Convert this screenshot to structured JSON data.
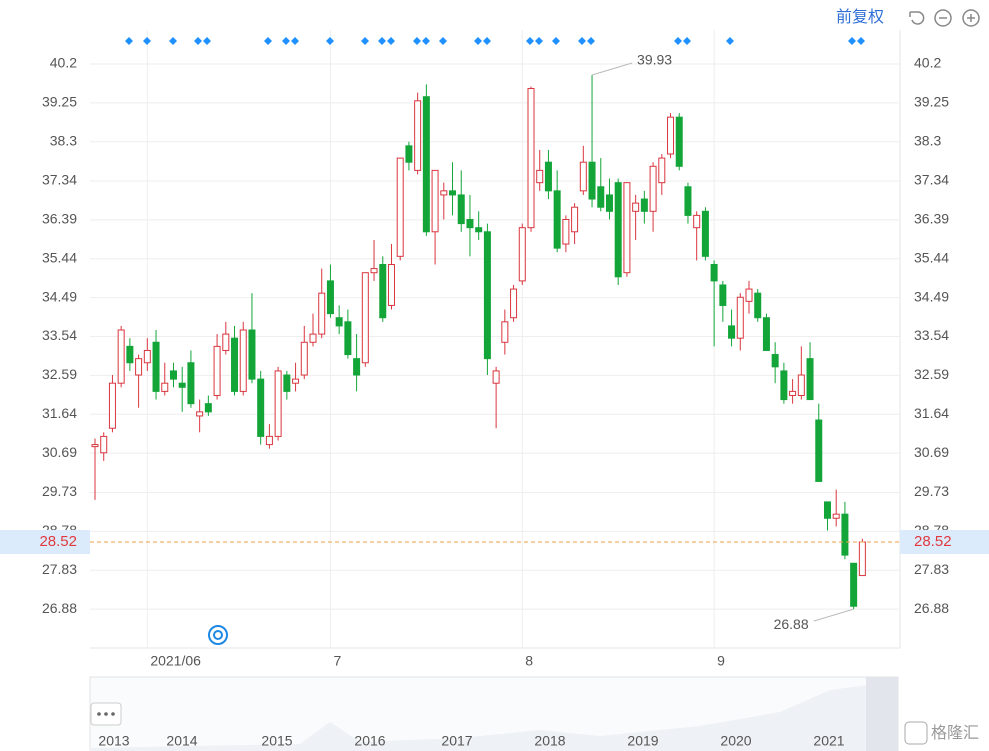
{
  "toolbar": {
    "adjust": "前复权"
  },
  "watermark": "格隆汇",
  "chart_data": {
    "type": "candlestick",
    "up_color": "#d9363e",
    "down_color": "#13a538",
    "ylim": [
      25.93,
      41.03
    ],
    "yticks": [
      40.2,
      39.25,
      38.3,
      37.34,
      36.39,
      35.44,
      34.49,
      33.54,
      32.59,
      31.64,
      30.69,
      29.73,
      28.78,
      27.83,
      26.88
    ],
    "grid": true,
    "last_price": 28.52,
    "annotations": {
      "max": 39.93,
      "min": 26.88
    },
    "categories": [
      null,
      null,
      null,
      null,
      null,
      null,
      "2021/06",
      null,
      null,
      null,
      null,
      null,
      null,
      null,
      null,
      null,
      null,
      null,
      null,
      null,
      null,
      null,
      null,
      null,
      null,
      null,
      null,
      "7",
      null,
      null,
      null,
      null,
      null,
      null,
      null,
      null,
      null,
      null,
      null,
      null,
      null,
      null,
      null,
      null,
      null,
      null,
      null,
      null,
      null,
      "8",
      null,
      null,
      null,
      null,
      null,
      null,
      null,
      null,
      null,
      null,
      null,
      null,
      null,
      null,
      null,
      null,
      null,
      null,
      null,
      null,
      null,
      "9",
      null,
      null,
      null,
      null,
      null,
      null,
      null,
      null,
      null,
      null,
      null,
      null,
      null,
      null,
      null,
      null,
      null
    ],
    "open": [
      30.85,
      30.7,
      31.3,
      32.4,
      33.3,
      32.6,
      32.9,
      33.4,
      32.2,
      32.7,
      32.4,
      32.9,
      31.6,
      31.9,
      32.1,
      33.2,
      33.5,
      32.2,
      33.7,
      32.5,
      30.9,
      31.1,
      32.6,
      32.4,
      32.6,
      33.4,
      33.6,
      34.9,
      34.0,
      33.9,
      33.0,
      32.9,
      35.1,
      35.3,
      34.3,
      35.5,
      38.2,
      37.6,
      39.4,
      36.1,
      37.0,
      37.1,
      37.0,
      36.4,
      36.2,
      36.1,
      32.4,
      33.4,
      34.0,
      34.9,
      36.2,
      37.3,
      37.8,
      37.1,
      35.8,
      36.1,
      37.1,
      37.8,
      37.2,
      37.0,
      37.3,
      35.1,
      36.6,
      36.9,
      36.6,
      37.3,
      38.0,
      38.9,
      37.2,
      36.2,
      36.6,
      35.3,
      34.8,
      33.8,
      33.5,
      34.4,
      34.6,
      34.0,
      33.1,
      32.7,
      32.1,
      32.1,
      33.0,
      31.5,
      29.5,
      29.1,
      29.2,
      28.0,
      27.7
    ],
    "high": [
      31.05,
      31.2,
      32.6,
      33.8,
      33.5,
      33.1,
      33.5,
      33.7,
      32.9,
      32.9,
      32.8,
      33.2,
      32.0,
      32.1,
      33.6,
      33.9,
      33.8,
      33.9,
      34.6,
      32.7,
      31.4,
      32.8,
      32.7,
      32.9,
      33.8,
      34.1,
      35.2,
      35.3,
      34.3,
      34.2,
      33.6,
      35.1,
      35.9,
      35.5,
      35.8,
      37.9,
      38.3,
      39.5,
      39.7,
      37.6,
      37.3,
      37.8,
      37.6,
      37.0,
      36.6,
      36.3,
      32.8,
      34.2,
      34.8,
      36.3,
      39.65,
      38.1,
      38.1,
      37.6,
      36.5,
      36.8,
      38.2,
      39.93,
      37.9,
      37.4,
      37.4,
      37.3,
      37.0,
      37.1,
      37.8,
      38.0,
      39.0,
      39.0,
      37.3,
      36.6,
      36.7,
      35.4,
      34.9,
      34.2,
      34.6,
      34.9,
      34.7,
      34.1,
      33.4,
      32.9,
      32.5,
      33.3,
      33.4,
      31.9,
      29.5,
      29.8,
      29.5,
      28.0,
      28.6
    ],
    "low": [
      29.55,
      30.5,
      31.2,
      32.3,
      32.7,
      31.8,
      32.7,
      32.0,
      32.1,
      32.3,
      31.7,
      31.8,
      31.2,
      31.6,
      32.0,
      33.1,
      32.1,
      32.1,
      32.4,
      30.9,
      30.8,
      31.0,
      32.0,
      32.2,
      32.5,
      33.3,
      33.5,
      34.0,
      33.6,
      33.0,
      32.2,
      32.8,
      34.9,
      33.9,
      34.2,
      35.4,
      37.6,
      37.5,
      36.0,
      35.3,
      36.4,
      36.5,
      36.1,
      35.5,
      35.9,
      32.6,
      31.3,
      33.1,
      33.9,
      34.8,
      36.1,
      37.1,
      36.9,
      35.6,
      35.6,
      35.8,
      37.0,
      36.7,
      36.6,
      36.4,
      34.8,
      35.0,
      35.9,
      36.3,
      36.1,
      37.0,
      37.9,
      37.6,
      36.3,
      35.4,
      35.4,
      33.3,
      33.9,
      33.3,
      33.2,
      34.1,
      33.9,
      33.2,
      32.4,
      31.9,
      31.9,
      32.0,
      32.0,
      30.0,
      28.8,
      28.9,
      28.1,
      26.88,
      27.7
    ],
    "close": [
      30.9,
      31.1,
      32.4,
      33.7,
      32.9,
      33.0,
      33.2,
      32.2,
      32.4,
      32.5,
      32.3,
      31.9,
      31.7,
      31.7,
      33.3,
      33.6,
      32.2,
      33.7,
      32.5,
      31.1,
      31.1,
      32.7,
      32.2,
      32.5,
      33.4,
      33.6,
      34.6,
      34.1,
      33.8,
      33.1,
      32.6,
      35.1,
      35.2,
      34.0,
      35.3,
      37.9,
      37.8,
      39.3,
      36.1,
      37.6,
      37.1,
      37.0,
      36.3,
      36.2,
      36.1,
      33.0,
      32.7,
      33.9,
      34.7,
      36.2,
      39.6,
      37.6,
      37.1,
      35.7,
      36.4,
      36.7,
      37.8,
      36.9,
      36.7,
      36.6,
      35.0,
      37.3,
      36.8,
      36.6,
      37.7,
      37.9,
      38.9,
      37.7,
      36.5,
      36.5,
      35.5,
      34.9,
      34.3,
      33.5,
      34.5,
      34.7,
      34.0,
      33.2,
      32.8,
      32.0,
      32.2,
      32.6,
      32.0,
      30.0,
      29.1,
      29.2,
      28.2,
      26.95,
      28.52
    ]
  },
  "navigator": {
    "years": [
      "2013",
      "2014",
      "2015",
      "2016",
      "2017",
      "2018",
      "2019",
      "2020",
      "2021"
    ]
  }
}
